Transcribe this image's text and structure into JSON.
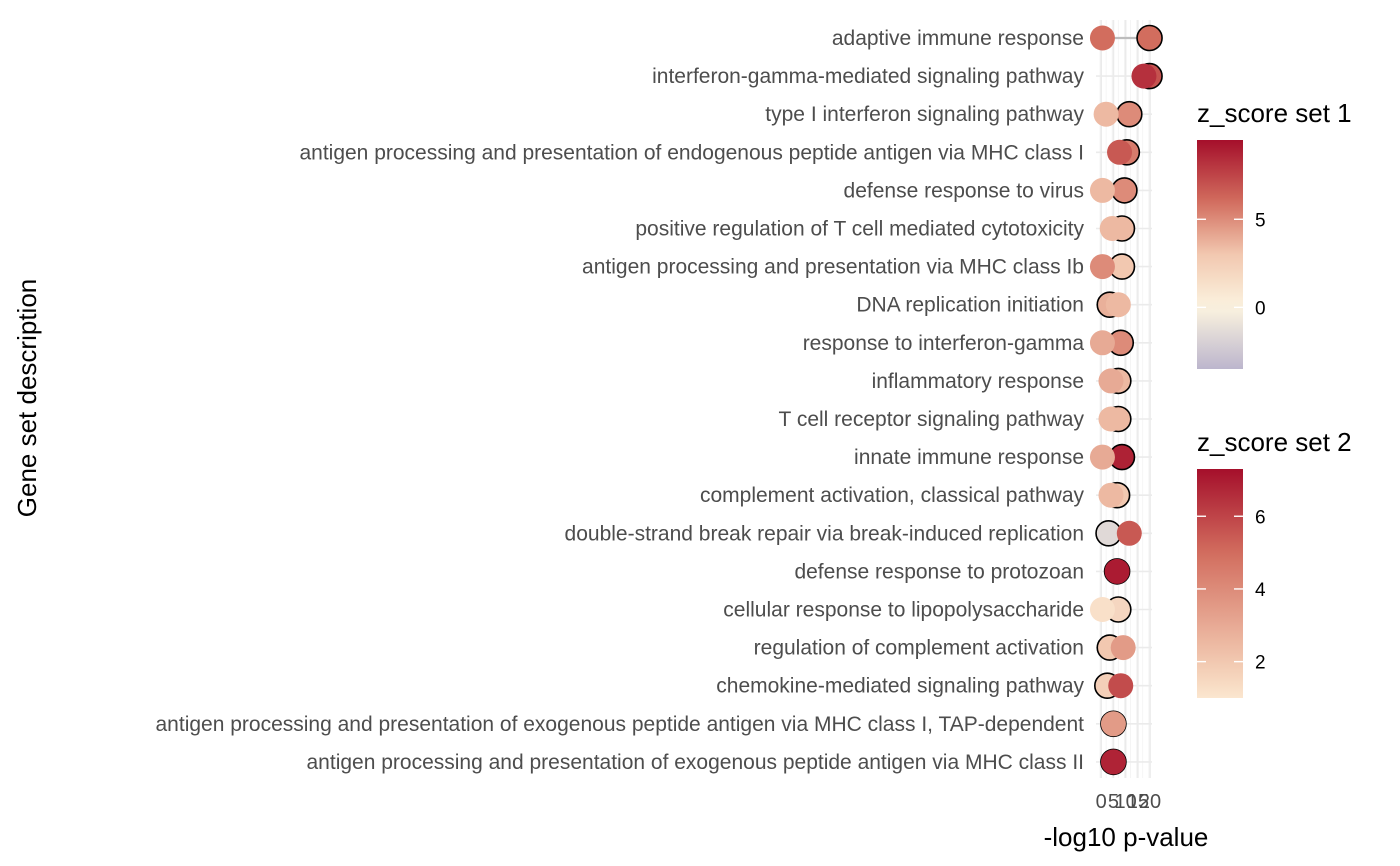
{
  "chart_data": {
    "type": "scatter",
    "title": "",
    "xlabel": "-log10 p-value",
    "ylabel": "Gene set description",
    "xlim": [
      -0.5,
      20.8
    ],
    "x_ticks": [
      {
        "value": 0,
        "label": "0"
      },
      {
        "value": 5,
        "label": "5"
      },
      {
        "value": 10,
        "label": "10"
      },
      {
        "value": 15,
        "label": "15"
      },
      {
        "value": 20,
        "label": "20"
      }
    ],
    "categories": [
      "adaptive immune response",
      "interferon-gamma-mediated signaling pathway",
      "type I interferon signaling pathway",
      "antigen processing and presentation of endogenous peptide antigen via MHC class I",
      "defense response to virus",
      "positive regulation of T cell mediated cytotoxicity",
      "antigen processing and presentation via MHC class Ib",
      "DNA replication initiation",
      "response to interferon-gamma",
      "inflammatory response",
      "T cell receptor signaling pathway",
      "innate immune response",
      "complement activation, classical pathway",
      "double-strand break repair via break-induced replication",
      "defense response to protozoan",
      "cellular response to lipopolysaccharide",
      "regulation of complement activation",
      "chemokine-mediated signaling pathway",
      "antigen processing and presentation of exogenous peptide antigen via MHC class I, TAP-dependent",
      "antigen processing and presentation of exogenous peptide antigen via MHC class II"
    ],
    "series": [
      {
        "legend_title": "z_score set 1",
        "outlined": true,
        "x": [
          19.8,
          19.8,
          11.5,
          10.5,
          9.5,
          8.5,
          8.5,
          3.5,
          8.0,
          7.0,
          7.0,
          8.5,
          6.5,
          3.0,
          6.5,
          7.0,
          3.5,
          2.5,
          5.0,
          5.0
        ],
        "z_score": [
          6.0,
          7.0,
          5.0,
          5.5,
          5.0,
          3.5,
          3.0,
          3.8,
          5.0,
          3.5,
          3.5,
          8.8,
          3.0,
          -1.5,
          8.8,
          2.0,
          3.0,
          2.5,
          3.5,
          8.0
        ]
      },
      {
        "legend_title": "z_score set 2",
        "outlined": false,
        "x": [
          0.5,
          17.5,
          2.0,
          7.5,
          0.5,
          4.5,
          0.5,
          7.0,
          0.5,
          4.0,
          4.0,
          0.5,
          4.0,
          11.5,
          6.5,
          0.5,
          9.0,
          8.0,
          5.0,
          5.0
        ],
        "z_score": [
          5.0,
          6.5,
          2.5,
          5.5,
          2.5,
          2.5,
          4.0,
          2.5,
          3.0,
          3.0,
          2.5,
          3.0,
          2.5,
          5.5,
          7.0,
          1.2,
          3.5,
          5.8,
          3.5,
          6.8
        ]
      }
    ],
    "legends": [
      {
        "title": "z_score set 1",
        "range": [
          -3.5,
          9.5
        ],
        "ticks": [
          0,
          5
        ]
      },
      {
        "title": "z_score set 2",
        "range": [
          1.0,
          7.3
        ],
        "ticks": [
          2,
          4,
          6
        ]
      }
    ],
    "colors": {
      "low_set1": "#bcb6cd",
      "mid": "#fbf3df",
      "light": "#f2c8b0",
      "medium": "#d26d5e",
      "high": "#a50f2b",
      "low_set2": "#fbe6cf",
      "connector": "#bdbdbd",
      "outline": "#000000"
    },
    "grid": true,
    "legend_position": "right"
  }
}
